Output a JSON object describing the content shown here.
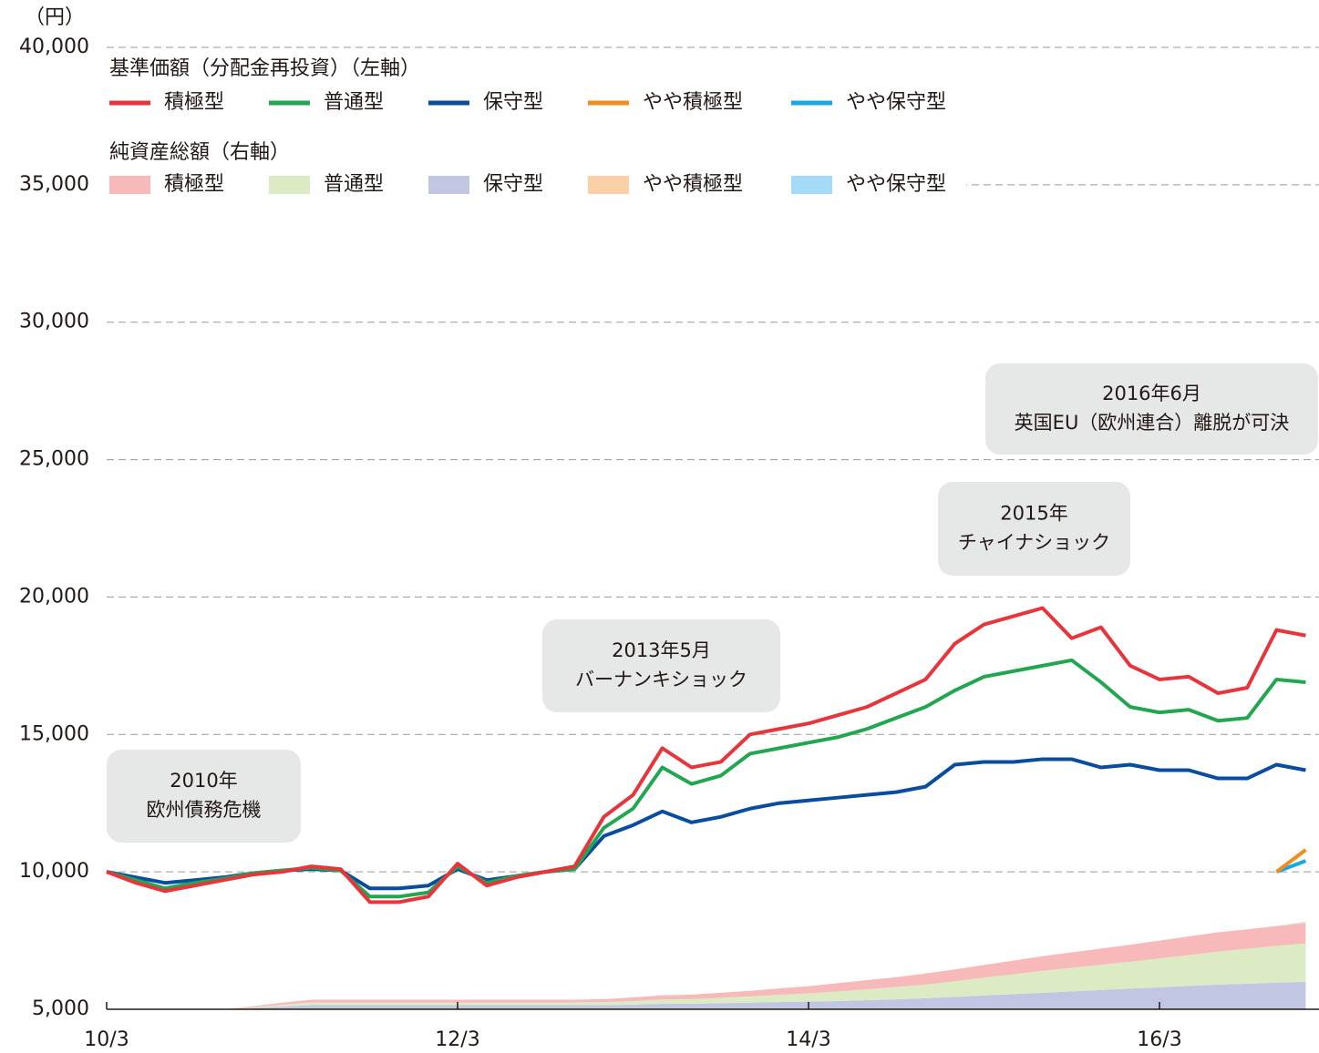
{
  "chart_data": {
    "type": "line",
    "unit_label": "（円）",
    "line_legend_title": "基準価額（分配金再投資）（左軸）",
    "area_legend_title": "純資産総額（右軸）",
    "categories": [
      "10/3",
      null,
      null,
      null,
      null,
      null,
      null,
      null,
      null,
      null,
      null,
      null,
      "12/3",
      null,
      null,
      null,
      null,
      null,
      null,
      null,
      null,
      null,
      null,
      null,
      "14/3",
      null,
      null,
      null,
      null,
      null,
      null,
      null,
      null,
      null,
      null,
      null,
      "16/3",
      null,
      null,
      null,
      null,
      null
    ],
    "ylim": [
      5000,
      40000
    ],
    "yticks": [
      {
        "value": 5000,
        "label": "5,000"
      },
      {
        "value": 10000,
        "label": "10,000"
      },
      {
        "value": 15000,
        "label": "15,000"
      },
      {
        "value": 20000,
        "label": "20,000"
      },
      {
        "value": 25000,
        "label": "25,000"
      },
      {
        "value": 30000,
        "label": "30,000"
      },
      {
        "value": 35000,
        "label": "35,000"
      },
      {
        "value": 40000,
        "label": "40,000"
      }
    ],
    "y2lim": [
      0,
      350
    ],
    "grid": true,
    "series": [
      {
        "name": "積極型",
        "color": "#e8343b",
        "values": [
          10000,
          9600,
          9300,
          9500,
          9700,
          9900,
          10000,
          10200,
          10100,
          8900,
          8900,
          9100,
          10300,
          9500,
          9800,
          10000,
          10200,
          12000,
          12800,
          14500,
          13800,
          14000,
          15000,
          15200,
          15400,
          15700,
          16000,
          16500,
          17000,
          18300,
          19000,
          19300,
          19600,
          18500,
          18900,
          17500,
          17000,
          17100,
          16500,
          16700,
          18800,
          18600
        ]
      },
      {
        "name": "普通型",
        "color": "#22a650",
        "values": [
          10000,
          9700,
          9400,
          9600,
          9750,
          9950,
          10050,
          10150,
          10050,
          9100,
          9100,
          9250,
          10200,
          9600,
          9850,
          10000,
          10100,
          11600,
          12300,
          13800,
          13200,
          13500,
          14300,
          14500,
          14700,
          14900,
          15200,
          15600,
          16000,
          16600,
          17100,
          17300,
          17500,
          17700,
          16900,
          16000,
          15800,
          15900,
          15500,
          15600,
          17000,
          16900
        ]
      },
      {
        "name": "保守型",
        "color": "#0a4d9e",
        "values": [
          10000,
          9800,
          9600,
          9700,
          9800,
          9950,
          10050,
          10100,
          10050,
          9400,
          9400,
          9500,
          10100,
          9700,
          9850,
          10000,
          10100,
          11300,
          11700,
          12200,
          11800,
          12000,
          12300,
          12500,
          12600,
          12700,
          12800,
          12900,
          13100,
          13900,
          14000,
          14000,
          14100,
          14100,
          13800,
          13900,
          13700,
          13700,
          13400,
          13400,
          13900,
          13700
        ]
      },
      {
        "name": "やや積極型",
        "color": "#f28c1e",
        "values": [
          null,
          null,
          null,
          null,
          null,
          null,
          null,
          null,
          null,
          null,
          null,
          null,
          null,
          null,
          null,
          null,
          null,
          null,
          null,
          null,
          null,
          null,
          null,
          null,
          null,
          null,
          null,
          null,
          null,
          null,
          null,
          null,
          null,
          null,
          null,
          null,
          null,
          null,
          null,
          null,
          10000,
          10800
        ]
      },
      {
        "name": "やや保守型",
        "color": "#1aa7e5",
        "values": [
          null,
          null,
          null,
          null,
          null,
          null,
          null,
          null,
          null,
          null,
          null,
          null,
          null,
          null,
          null,
          null,
          null,
          null,
          null,
          null,
          null,
          null,
          null,
          null,
          null,
          null,
          null,
          null,
          null,
          null,
          null,
          null,
          null,
          null,
          null,
          null,
          null,
          null,
          null,
          null,
          10000,
          10400
        ]
      }
    ],
    "area_series": [
      {
        "name": "保守型",
        "color": "#c1c6e3",
        "axis": "y2",
        "values": [
          0,
          0,
          0,
          0,
          0,
          0.5,
          1,
          1.5,
          1.5,
          1.5,
          1.5,
          1.5,
          1.5,
          1.5,
          1.5,
          1.5,
          1.5,
          1.5,
          1.7,
          2,
          2,
          2.2,
          2.4,
          2.6,
          2.8,
          3,
          3.3,
          3.6,
          4,
          4.5,
          5,
          5.5,
          6,
          6.5,
          7,
          7.5,
          8,
          8.5,
          9,
          9.3,
          9.7,
          10
        ]
      },
      {
        "name": "普通型",
        "color": "#dcebc4",
        "axis": "y2",
        "values": [
          0,
          0,
          0,
          0,
          0,
          0.3,
          0.7,
          1,
          1,
          1,
          1,
          1,
          1,
          1,
          1,
          1,
          1,
          1.1,
          1.3,
          1.6,
          1.7,
          2,
          2.3,
          2.7,
          3,
          3.5,
          4,
          4.5,
          5,
          5.7,
          6.5,
          7.2,
          8,
          8.6,
          9.2,
          9.8,
          10.5,
          11.2,
          12,
          12.7,
          13.4,
          14
        ]
      },
      {
        "name": "積極型",
        "color": "#f7b9b9",
        "axis": "y2",
        "values": [
          0,
          0,
          0,
          0,
          0,
          0.3,
          0.7,
          1,
          1,
          1,
          1,
          1,
          1,
          1,
          1,
          1,
          1,
          1.1,
          1.3,
          1.5,
          1.6,
          1.8,
          2,
          2.3,
          2.6,
          3,
          3.3,
          3.6,
          4,
          4.3,
          4.6,
          5,
          5.3,
          5.6,
          5.9,
          6.2,
          6.5,
          6.8,
          7,
          7.1,
          7.2,
          7.3
        ]
      },
      {
        "name": "やや積極型",
        "color": "#fbd0a6",
        "axis": "y2",
        "values": [
          null,
          null,
          null,
          null,
          null,
          null,
          null,
          null,
          null,
          null,
          null,
          null,
          null,
          null,
          null,
          null,
          null,
          null,
          null,
          null,
          null,
          null,
          null,
          null,
          null,
          null,
          null,
          null,
          null,
          null,
          null,
          null,
          null,
          null,
          null,
          null,
          null,
          null,
          null,
          null,
          0,
          0.3
        ]
      },
      {
        "name": "やや保守型",
        "color": "#a4dbf6",
        "axis": "y2",
        "values": [
          null,
          null,
          null,
          null,
          null,
          null,
          null,
          null,
          null,
          null,
          null,
          null,
          null,
          null,
          null,
          null,
          null,
          null,
          null,
          null,
          null,
          null,
          null,
          null,
          null,
          null,
          null,
          null,
          null,
          null,
          null,
          null,
          null,
          null,
          null,
          null,
          null,
          null,
          null,
          null,
          0,
          0.2
        ]
      }
    ],
    "annotations": [
      {
        "lines": [
          "2010年",
          "欧州債務危機"
        ]
      },
      {
        "lines": [
          "2013年5月",
          "バーナンキショック"
        ]
      },
      {
        "lines": [
          "2015年",
          "チャイナショック"
        ]
      },
      {
        "lines": [
          "2016年6月",
          "英国EU（欧州連合）離脱が可決"
        ]
      }
    ]
  }
}
